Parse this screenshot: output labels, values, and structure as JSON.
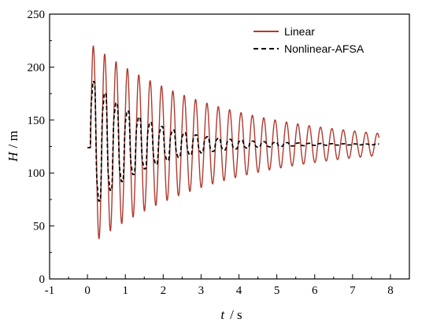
{
  "chart_data": {
    "type": "line",
    "xlabel_var": "t",
    "xlabel_unit": "/ s",
    "ylabel_var": "H",
    "ylabel_unit": "/ m",
    "xlim": [
      -1,
      8.5
    ],
    "ylim": [
      0,
      250
    ],
    "x_ticks": [
      "-1",
      "0",
      "1",
      "2",
      "3",
      "4",
      "5",
      "6",
      "7",
      "8"
    ],
    "y_ticks": [
      "0",
      "50",
      "100",
      "150",
      "200",
      "250"
    ],
    "legend_position": "top-right",
    "series": [
      {
        "name": "Linear",
        "color": "#b03a2e",
        "style": "solid",
        "t_start": 0,
        "t_end": 7.7,
        "start_value": 124,
        "mean": 127,
        "initial_amplitude": 95,
        "decay_rate": 0.29,
        "period_s": 0.3,
        "peaks": [
          {
            "t": 0.15,
            "H": 222
          },
          {
            "t": 0.3,
            "H": 40
          },
          {
            "t": 0.45,
            "H": 211
          },
          {
            "t": 0.6,
            "H": 48
          },
          {
            "t": 3.0,
            "H": 175
          },
          {
            "t": 3.15,
            "H": 88
          },
          {
            "t": 7.5,
            "H": 143
          },
          {
            "t": 7.65,
            "H": 112
          }
        ]
      },
      {
        "name": "Nonlinear-AFSA",
        "color": "#000000",
        "style": "dashed",
        "t_start": 0,
        "t_end": 7.7,
        "start_value": 124,
        "mean": 127,
        "initial_amplitude": 70,
        "decay_rate": 0.7,
        "period_s": 0.3,
        "peaks": [
          {
            "t": 0.15,
            "H": 197
          },
          {
            "t": 0.3,
            "H": 65
          },
          {
            "t": 3.0,
            "H": 150
          },
          {
            "t": 7.5,
            "H": 131
          }
        ]
      }
    ]
  }
}
